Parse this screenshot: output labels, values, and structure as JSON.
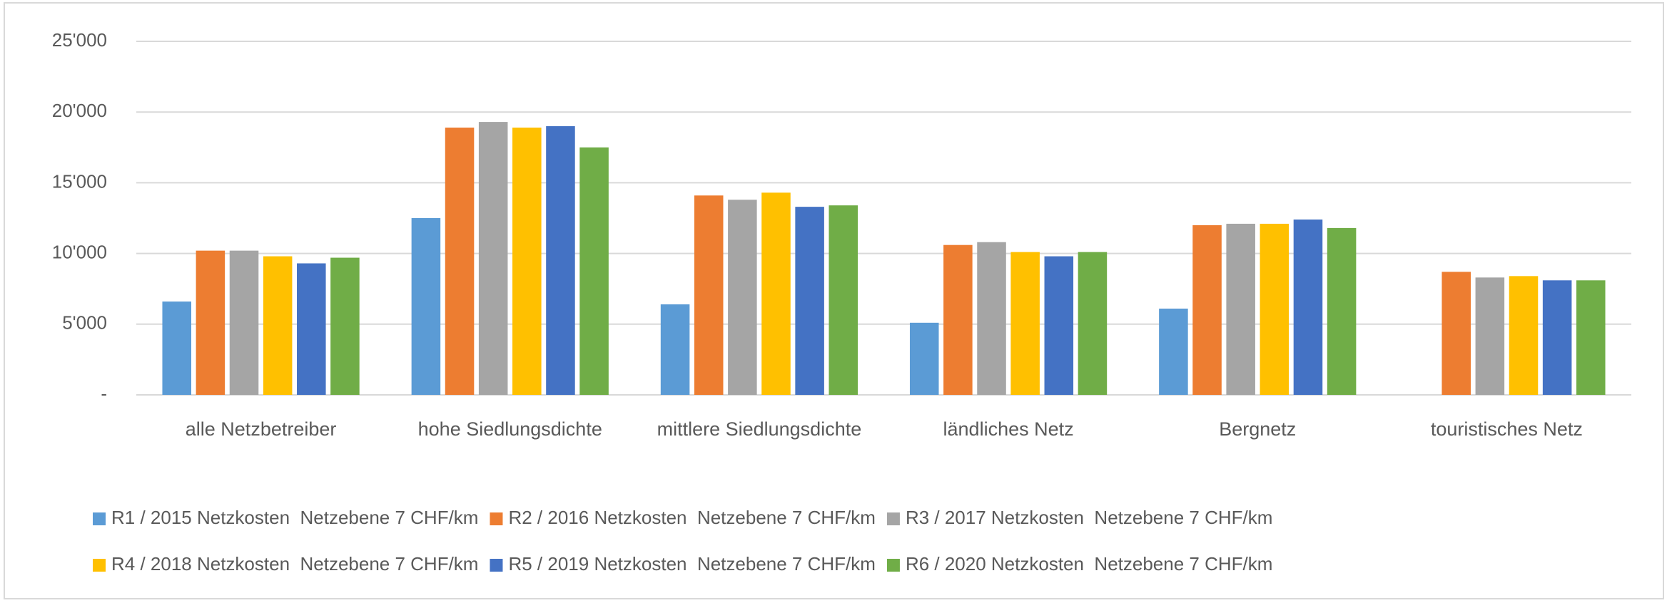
{
  "chart_data": {
    "type": "bar",
    "categories": [
      "alle Netzbetreiber",
      "hohe Siedlungsdichte",
      "mittlere Siedlungsdichte",
      "ländliches Netz",
      "Bergnetz",
      "touristisches Netz"
    ],
    "series": [
      {
        "name": "R1 / 2015 Netzkosten  Netzebene 7 CHF/km",
        "color": "#5b9bd5",
        "values": [
          6600,
          12500,
          6400,
          5100,
          6100,
          null
        ]
      },
      {
        "name": "R2 / 2016 Netzkosten  Netzebene 7 CHF/km",
        "color": "#ed7d31",
        "values": [
          10200,
          18900,
          14100,
          10600,
          12000,
          8700
        ]
      },
      {
        "name": "R3 / 2017 Netzkosten  Netzebene 7 CHF/km",
        "color": "#a5a5a5",
        "values": [
          10200,
          19300,
          13800,
          10800,
          12100,
          8300
        ]
      },
      {
        "name": "R4 / 2018 Netzkosten  Netzebene 7 CHF/km",
        "color": "#ffc000",
        "values": [
          9800,
          18900,
          14300,
          10100,
          12100,
          8400
        ]
      },
      {
        "name": "R5 / 2019 Netzkosten  Netzebene 7 CHF/km",
        "color": "#4472c4",
        "values": [
          9300,
          19000,
          13300,
          9800,
          12400,
          8100
        ]
      },
      {
        "name": "R6 / 2020 Netzkosten  Netzebene 7 CHF/km",
        "color": "#70ad47",
        "values": [
          9700,
          17500,
          13400,
          10100,
          11800,
          8100
        ]
      }
    ],
    "ylim": [
      0,
      25000
    ],
    "yticks": [
      {
        "value": 0,
        "label": "-"
      },
      {
        "value": 5000,
        "label": "5'000"
      },
      {
        "value": 10000,
        "label": "10'000"
      },
      {
        "value": 15000,
        "label": "15'000"
      },
      {
        "value": 20000,
        "label": "20'000"
      },
      {
        "value": 25000,
        "label": "25'000"
      }
    ],
    "grid": true
  }
}
